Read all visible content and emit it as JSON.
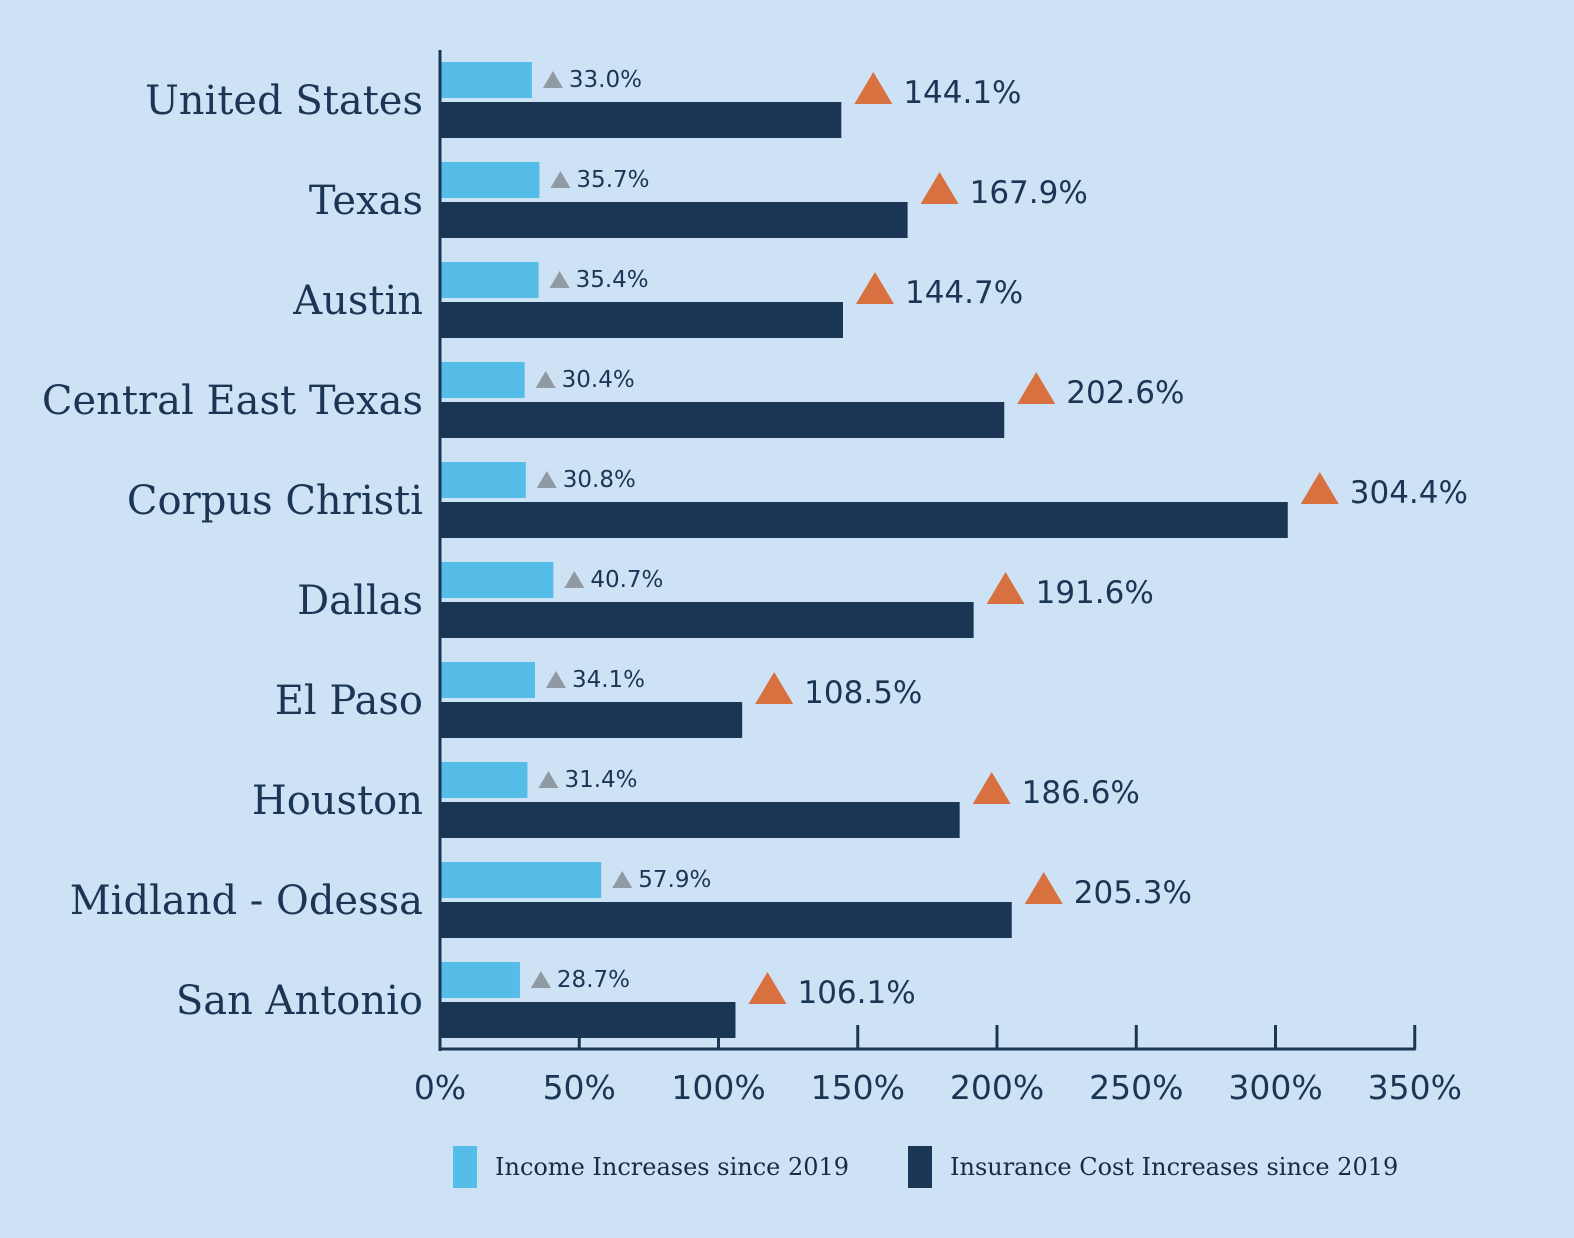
{
  "chart_data": {
    "type": "bar",
    "orientation": "horizontal",
    "categories": [
      "United States",
      "Texas",
      "Austin",
      "Central East Texas",
      "Corpus Christi",
      "Dallas",
      "El Paso",
      "Houston",
      "Midland - Odessa",
      "San Antonio"
    ],
    "series": [
      {
        "name": "Income Increases since 2019",
        "color": "#56bde9",
        "marker_color": "#8f9aa3",
        "values": [
          33.0,
          35.7,
          35.4,
          30.4,
          30.8,
          40.7,
          34.1,
          31.4,
          57.9,
          28.7
        ],
        "labels": [
          "33.0%",
          "35.7%",
          "35.4%",
          "30.4%",
          "30.8%",
          "40.7%",
          "34.1%",
          "31.4%",
          "57.9%",
          "28.7%"
        ]
      },
      {
        "name": "Insurance Cost Increases since 2019",
        "color": "#1b3655",
        "marker_color": "#d9703f",
        "values": [
          144.1,
          167.9,
          144.7,
          202.6,
          304.4,
          191.6,
          108.5,
          186.6,
          205.3,
          106.1
        ],
        "labels": [
          "144.1%",
          "167.9%",
          "144.7%",
          "202.6%",
          "304.4%",
          "191.6%",
          "108.5%",
          "186.6%",
          "205.3%",
          "106.1%"
        ]
      }
    ],
    "x_ticks": [
      0,
      50,
      100,
      150,
      200,
      250,
      300,
      350
    ],
    "x_tick_labels": [
      "0%",
      "50%",
      "100%",
      "150%",
      "200%",
      "250%",
      "300%",
      "350%"
    ],
    "xlim": [
      0,
      350
    ],
    "legend_position": "bottom",
    "grid": false
  }
}
